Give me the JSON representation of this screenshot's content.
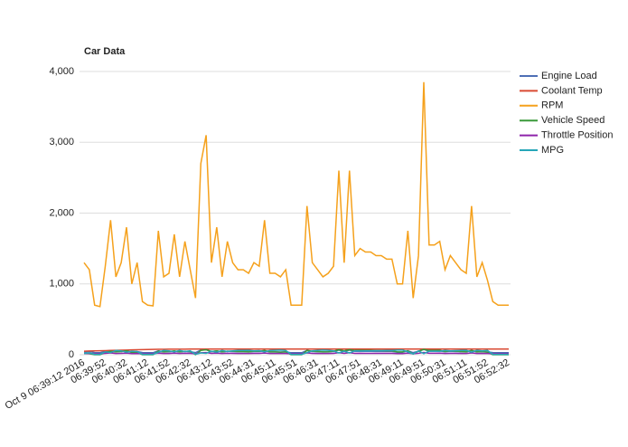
{
  "chart_data": {
    "type": "line",
    "title": "Car Data",
    "categories": [
      "Oct 9 06:39:12 2016",
      null,
      null,
      null,
      "06:39:52",
      null,
      null,
      null,
      "06:40:32",
      null,
      null,
      null,
      "06:41:12",
      null,
      null,
      null,
      "06:41:52",
      null,
      null,
      null,
      "06:42:32",
      null,
      null,
      null,
      "06:43:12",
      null,
      null,
      null,
      "06:43:52",
      null,
      null,
      null,
      "06:44:31",
      null,
      null,
      null,
      "06:45:11",
      null,
      null,
      null,
      "06:45:51",
      null,
      null,
      null,
      "06:46:31",
      null,
      null,
      null,
      "06:47:11",
      null,
      null,
      null,
      "06:47:51",
      null,
      null,
      null,
      "06:48:31",
      null,
      null,
      null,
      "06:49:11",
      null,
      null,
      null,
      "06:49:51",
      null,
      null,
      null,
      "06:50:31",
      null,
      null,
      null,
      "06:51:11",
      null,
      null,
      null,
      "06:51:52",
      null,
      null,
      null,
      "06:52:32"
    ],
    "series": [
      {
        "name": "Engine Load",
        "color": "#4e6fb5",
        "values": [
          40,
          45,
          30,
          28,
          50,
          60,
          42,
          45,
          55,
          35,
          45,
          30,
          28,
          28,
          55,
          40,
          42,
          50,
          40,
          48,
          42,
          30,
          65,
          70,
          45,
          55,
          40,
          50,
          45,
          42,
          42,
          40,
          45,
          44,
          55,
          40,
          40,
          38,
          42,
          28,
          28,
          28,
          60,
          45,
          42,
          40,
          40,
          44,
          65,
          45,
          65,
          48,
          50,
          48,
          48,
          47,
          47,
          46,
          46,
          35,
          35,
          55,
          30,
          48,
          75,
          50,
          50,
          52,
          42,
          48,
          45,
          42,
          40,
          60,
          40,
          45,
          38,
          30,
          28,
          28,
          28
        ]
      },
      {
        "name": "Coolant Temp",
        "color": "#d94a33",
        "values": [
          50,
          52,
          54,
          56,
          58,
          60,
          62,
          64,
          66,
          68,
          70,
          72,
          74,
          75,
          76,
          77,
          78,
          78,
          79,
          79,
          80,
          80,
          80,
          80,
          80,
          80,
          80,
          80,
          80,
          80,
          80,
          80,
          80,
          80,
          80,
          80,
          80,
          80,
          80,
          80,
          80,
          80,
          80,
          80,
          80,
          80,
          80,
          80,
          80,
          80,
          80,
          80,
          80,
          80,
          80,
          80,
          80,
          80,
          80,
          80,
          80,
          80,
          80,
          80,
          80,
          80,
          80,
          80,
          80,
          80,
          80,
          80,
          80,
          80,
          80,
          80,
          80,
          80,
          80,
          80,
          80
        ]
      },
      {
        "name": "RPM",
        "color": "#f5a11c",
        "values": [
          1300,
          1200,
          700,
          680,
          1250,
          1900,
          1100,
          1300,
          1800,
          1000,
          1300,
          750,
          700,
          690,
          1750,
          1100,
          1150,
          1700,
          1100,
          1600,
          1200,
          800,
          2700,
          3100,
          1300,
          1800,
          1100,
          1600,
          1300,
          1200,
          1200,
          1150,
          1300,
          1250,
          1900,
          1150,
          1150,
          1100,
          1200,
          700,
          700,
          700,
          2100,
          1300,
          1200,
          1100,
          1150,
          1250,
          2600,
          1300,
          2600,
          1400,
          1500,
          1450,
          1450,
          1400,
          1400,
          1350,
          1350,
          1000,
          1000,
          1750,
          800,
          1400,
          3850,
          1550,
          1550,
          1600,
          1200,
          1400,
          1300,
          1200,
          1150,
          2100,
          1100,
          1300,
          1050,
          750,
          700,
          700,
          700
        ]
      },
      {
        "name": "Vehicle Speed",
        "color": "#3a9a3a",
        "values": [
          20,
          15,
          0,
          0,
          30,
          50,
          40,
          45,
          55,
          30,
          35,
          0,
          0,
          0,
          50,
          40,
          45,
          55,
          40,
          50,
          45,
          0,
          60,
          70,
          45,
          55,
          40,
          50,
          50,
          45,
          45,
          40,
          50,
          48,
          60,
          40,
          40,
          35,
          40,
          0,
          0,
          0,
          60,
          50,
          45,
          40,
          42,
          50,
          70,
          55,
          70,
          60,
          62,
          60,
          60,
          58,
          58,
          56,
          56,
          40,
          40,
          55,
          10,
          50,
          75,
          60,
          60,
          62,
          45,
          55,
          50,
          45,
          40,
          60,
          40,
          45,
          35,
          0,
          0,
          0,
          0
        ]
      },
      {
        "name": "Throttle Position",
        "color": "#8e24aa",
        "values": [
          18,
          17,
          14,
          14,
          20,
          25,
          18,
          19,
          23,
          16,
          18,
          14,
          14,
          14,
          22,
          18,
          18,
          22,
          18,
          21,
          19,
          15,
          27,
          30,
          19,
          23,
          17,
          21,
          19,
          18,
          18,
          18,
          19,
          19,
          24,
          18,
          18,
          17,
          18,
          14,
          14,
          14,
          26,
          19,
          18,
          17,
          18,
          19,
          28,
          19,
          28,
          20,
          21,
          20,
          20,
          20,
          20,
          19,
          19,
          16,
          16,
          22,
          15,
          20,
          32,
          21,
          21,
          22,
          18,
          20,
          19,
          18,
          18,
          26,
          17,
          19,
          17,
          14,
          14,
          14,
          14
        ]
      },
      {
        "name": "MPG",
        "color": "#26a6b8",
        "values": [
          20,
          25,
          5,
          5,
          40,
          30,
          60,
          55,
          35,
          50,
          45,
          5,
          5,
          5,
          35,
          60,
          55,
          40,
          60,
          45,
          55,
          5,
          25,
          20,
          50,
          35,
          60,
          45,
          55,
          60,
          60,
          62,
          55,
          58,
          40,
          60,
          62,
          65,
          60,
          5,
          5,
          5,
          30,
          55,
          60,
          65,
          62,
          55,
          25,
          50,
          25,
          55,
          52,
          55,
          55,
          58,
          58,
          60,
          60,
          65,
          65,
          40,
          10,
          55,
          15,
          50,
          50,
          48,
          60,
          55,
          58,
          60,
          62,
          35,
          62,
          55,
          60,
          5,
          5,
          5,
          5
        ]
      }
    ],
    "ylim": [
      0,
      4000
    ],
    "yticks": [
      0,
      {
        "value": 1000,
        "label": "1,000"
      },
      {
        "value": 2000,
        "label": "2,000"
      },
      {
        "value": 3000,
        "label": "3,000"
      },
      {
        "value": 4000,
        "label": "4,000"
      }
    ],
    "grid": true,
    "legend": "right"
  }
}
